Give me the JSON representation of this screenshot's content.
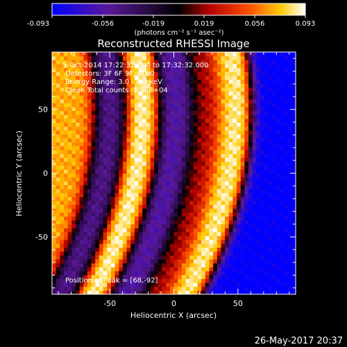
{
  "colorbar": {
    "ticks": [
      "-0.093",
      "-0.056",
      "-0.019",
      "0.019",
      "0.056",
      "0.093"
    ],
    "min": -0.093,
    "max": 0.093,
    "units_label": "(photons cm⁻² s⁻¹ asec⁻²)"
  },
  "title": "Reconstructed RHESSI Image",
  "info": {
    "time_range": "5-Oct-2014 17:22:32.000 to 17:32:32.000",
    "detectors": "Detectors: 3F 6F 9F, Att 0",
    "energy": "Energy Range: 3.0 - 6.0 keV",
    "clean": "Clean     Total counts: 1.99E+04",
    "peak": "Position of Peak = [68,-92]"
  },
  "footer_timestamp": "26-May-2017 20:37",
  "colors": {
    "background": "#000000",
    "foreground": "#ffffff",
    "colormap": [
      "#0000ff",
      "#5a189a",
      "#000000",
      "#b40000",
      "#ff5000",
      "#ffc800",
      "#ffffff"
    ]
  },
  "chart_data": {
    "type": "heatmap",
    "title": "Reconstructed RHESSI Image",
    "xlabel": "Heliocentric X (arcsec)",
    "ylabel": "Heliocentric Y (arcsec)",
    "xlim": [
      -95,
      95
    ],
    "ylim": [
      -95,
      95
    ],
    "x_ticks": [
      -50,
      0,
      50
    ],
    "y_ticks": [
      -50,
      0,
      50
    ],
    "colorscale": "hot-cold",
    "value_range": [
      -0.093,
      0.093
    ],
    "bands": [
      {
        "x_center": -85,
        "value": 0.07
      },
      {
        "x_center": -60,
        "value": -0.05
      },
      {
        "x_center": -35,
        "value": 0.093
      },
      {
        "x_center": -10,
        "value": -0.06
      },
      {
        "x_center": 15,
        "value": 0.02
      },
      {
        "x_center": 35,
        "value": 0.09
      },
      {
        "x_center": 65,
        "value": -0.093
      }
    ],
    "peak_position": [
      68,
      -92
    ]
  }
}
